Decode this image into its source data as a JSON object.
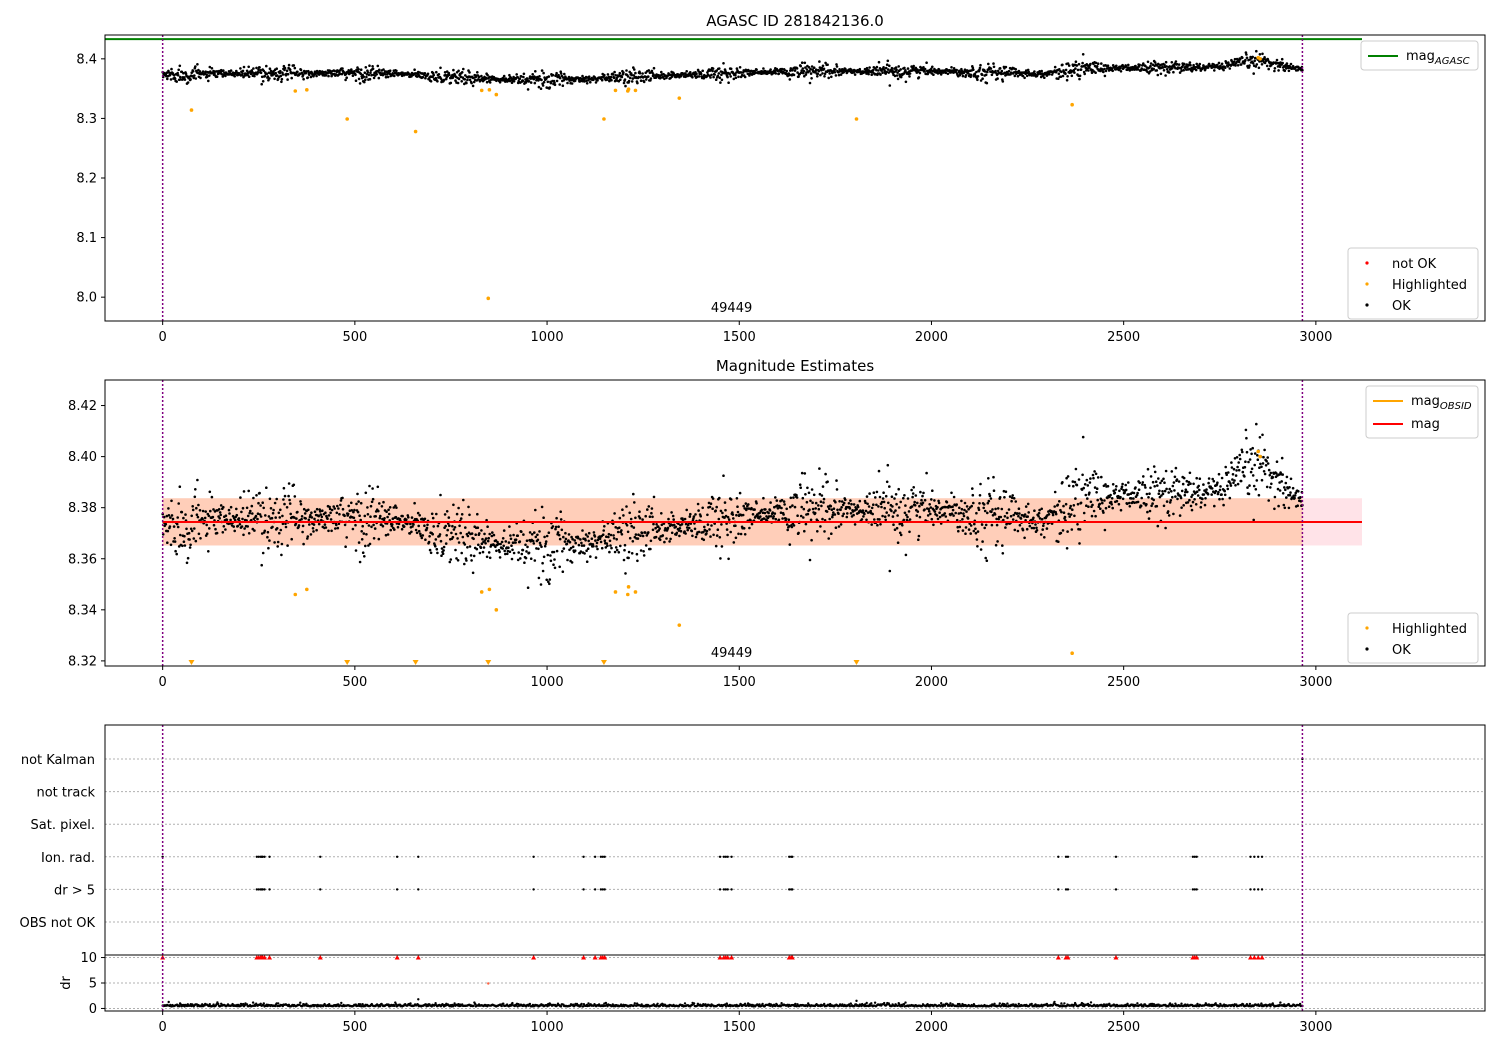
{
  "chart_data": [
    {
      "type": "scatter",
      "title": "AGASC ID 281842136.0",
      "xlim": [
        -150,
        3440
      ],
      "ylim": [
        7.96,
        8.44
      ],
      "x_ticks": [
        0,
        500,
        1000,
        1500,
        2000,
        2500,
        3000
      ],
      "y_ticks": [
        8.0,
        8.1,
        8.2,
        8.3,
        8.4
      ],
      "y_tick_labels": [
        "8.0",
        "8.1",
        "8.2",
        "8.3",
        "8.4"
      ],
      "obsid_label": "49449",
      "obsid_label_x": 1480,
      "obs_boundaries": [
        0,
        2965
      ],
      "agasc_mag": 8.433,
      "agasc_line_x": [
        -150,
        3120
      ],
      "ok_points": {
        "x_range": [
          0,
          2965
        ],
        "n": 2200,
        "trend": [
          [
            0,
            8.373
          ],
          [
            250,
            8.376
          ],
          [
            600,
            8.375
          ],
          [
            800,
            8.368
          ],
          [
            1000,
            8.364
          ],
          [
            1300,
            8.372
          ],
          [
            1600,
            8.378
          ],
          [
            2000,
            8.38
          ],
          [
            2300,
            8.375
          ],
          [
            2400,
            8.384
          ],
          [
            2750,
            8.386
          ],
          [
            2850,
            8.398
          ],
          [
            2965,
            8.382
          ]
        ],
        "scatter": 0.006
      },
      "highlighted_points": [
        [
          75,
          8.314
        ],
        [
          345,
          8.346
        ],
        [
          375,
          8.348
        ],
        [
          480,
          8.299
        ],
        [
          658,
          8.278
        ],
        [
          830,
          8.347
        ],
        [
          847,
          7.998
        ],
        [
          850,
          8.348
        ],
        [
          868,
          8.34
        ],
        [
          1148,
          8.299
        ],
        [
          1178,
          8.347
        ],
        [
          1210,
          8.346
        ],
        [
          1212,
          8.349
        ],
        [
          1230,
          8.347
        ],
        [
          1344,
          8.334
        ],
        [
          1805,
          8.299
        ],
        [
          2366,
          8.323
        ],
        [
          2850,
          8.402
        ],
        [
          2855,
          8.4
        ]
      ],
      "legends": [
        {
          "position": "upper right",
          "entries": [
            {
              "label": "mag",
              "subscript": "AGASC",
              "color": "#008000",
              "kind": "line"
            }
          ]
        },
        {
          "position": "lower right",
          "entries": [
            {
              "label": "not OK",
              "color": "#ff0000",
              "kind": "marker"
            },
            {
              "label": "Highlighted",
              "color": "#ffa500",
              "kind": "marker"
            },
            {
              "label": "OK",
              "color": "#000000",
              "kind": "marker"
            }
          ]
        }
      ]
    },
    {
      "type": "scatter",
      "title": "Magnitude Estimates",
      "xlim": [
        -150,
        3440
      ],
      "ylim": [
        8.318,
        8.43
      ],
      "x_ticks": [
        0,
        500,
        1000,
        1500,
        2000,
        2500,
        3000
      ],
      "y_ticks": [
        8.32,
        8.34,
        8.36,
        8.38,
        8.4,
        8.42
      ],
      "y_tick_labels": [
        "8.32",
        "8.34",
        "8.36",
        "8.38",
        "8.40",
        "8.42"
      ],
      "obsid_label": "49449",
      "obsid_label_x": 1480,
      "obs_boundaries": [
        0,
        2965
      ],
      "mean_mag": 8.3744,
      "mag_band": [
        8.3652,
        8.3837
      ],
      "obsid_band_x": [
        0,
        2965
      ],
      "overall_band_x": [
        0,
        3120
      ],
      "ok_points": {
        "x_range": [
          0,
          2965
        ],
        "n": 2200,
        "trend": [
          [
            0,
            8.373
          ],
          [
            250,
            8.376
          ],
          [
            600,
            8.375
          ],
          [
            800,
            8.368
          ],
          [
            1000,
            8.364
          ],
          [
            1300,
            8.372
          ],
          [
            1600,
            8.378
          ],
          [
            2000,
            8.38
          ],
          [
            2300,
            8.375
          ],
          [
            2400,
            8.384
          ],
          [
            2750,
            8.386
          ],
          [
            2850,
            8.398
          ],
          [
            2965,
            8.382
          ]
        ],
        "scatter": 0.006
      },
      "highlighted_points": [
        [
          345,
          8.346
        ],
        [
          375,
          8.348
        ],
        [
          830,
          8.347
        ],
        [
          850,
          8.348
        ],
        [
          868,
          8.34
        ],
        [
          1178,
          8.347
        ],
        [
          1210,
          8.346
        ],
        [
          1212,
          8.349
        ],
        [
          1230,
          8.347
        ],
        [
          1344,
          8.334
        ],
        [
          2366,
          8.323
        ],
        [
          2850,
          8.402
        ],
        [
          2855,
          8.4
        ]
      ],
      "out_of_range_markers_x": [
        75,
        480,
        658,
        847,
        1148,
        1805
      ],
      "legends": [
        {
          "position": "upper right",
          "entries": [
            {
              "label": "mag",
              "subscript": "OBSID",
              "color": "#ffa500",
              "kind": "line"
            },
            {
              "label": "mag",
              "subscript": "",
              "color": "#ff0000",
              "kind": "line"
            }
          ]
        },
        {
          "position": "lower right",
          "entries": [
            {
              "label": "Highlighted",
              "color": "#ffa500",
              "kind": "marker"
            },
            {
              "label": "OK",
              "color": "#000000",
              "kind": "marker"
            }
          ]
        }
      ]
    },
    {
      "type": "scatter",
      "title": "",
      "xlim": [
        -150,
        3440
      ],
      "categories": [
        "not Kalman",
        "not track",
        "Sat. pixel.",
        "Ion. rad.",
        "dr > 5",
        "OBS not OK"
      ],
      "flag_times_x": [
        0,
        245,
        250,
        255,
        258,
        260,
        265,
        278,
        410,
        610,
        665,
        965,
        1095,
        1125,
        1140,
        1145,
        1150,
        1450,
        1460,
        1465,
        1470,
        1480,
        1630,
        1635,
        1638,
        2330,
        2350,
        2355,
        2480,
        2680,
        2685,
        2690,
        2830,
        2840,
        2850,
        2860
      ],
      "obs_boundaries": [
        0,
        2965
      ],
      "dr": {
        "ylim": [
          -0.5,
          10.5
        ],
        "y_ticks": [
          0,
          5,
          10
        ],
        "y_tick_labels": [
          "0",
          "5",
          "10"
        ],
        "ylabel": "dr",
        "points": {
          "x_range": [
            0,
            2965
          ],
          "n": 1500,
          "level": 0.4,
          "scatter": 0.25
        },
        "outliers": [
          [
            665,
            1.8
          ],
          [
            847,
            4.9
          ],
          [
            1805,
            1.5
          ]
        ],
        "capped_marker_value": 10,
        "x_ticks": [
          0,
          500,
          1000,
          1500,
          2000,
          2500,
          3000
        ]
      }
    }
  ]
}
